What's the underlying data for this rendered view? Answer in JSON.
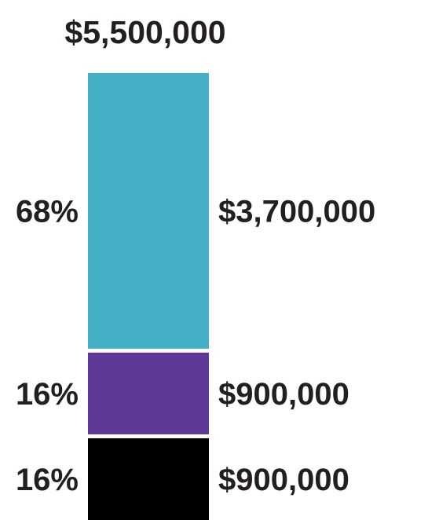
{
  "chart_data": {
    "type": "bar",
    "stacked": true,
    "total_label": "$5,500,000",
    "total": 5500000,
    "segments": [
      {
        "percent_label": "68%",
        "value_label": "$3,700,000",
        "value": 3700000,
        "color": "#44b0c5"
      },
      {
        "percent_label": "16%",
        "value_label": "$900,000",
        "value": 900000,
        "color": "#5e3896"
      },
      {
        "percent_label": "16%",
        "value_label": "$900,000",
        "value": 900000,
        "color": "#000000"
      }
    ],
    "legend": "none",
    "grid": false,
    "axes": false
  }
}
